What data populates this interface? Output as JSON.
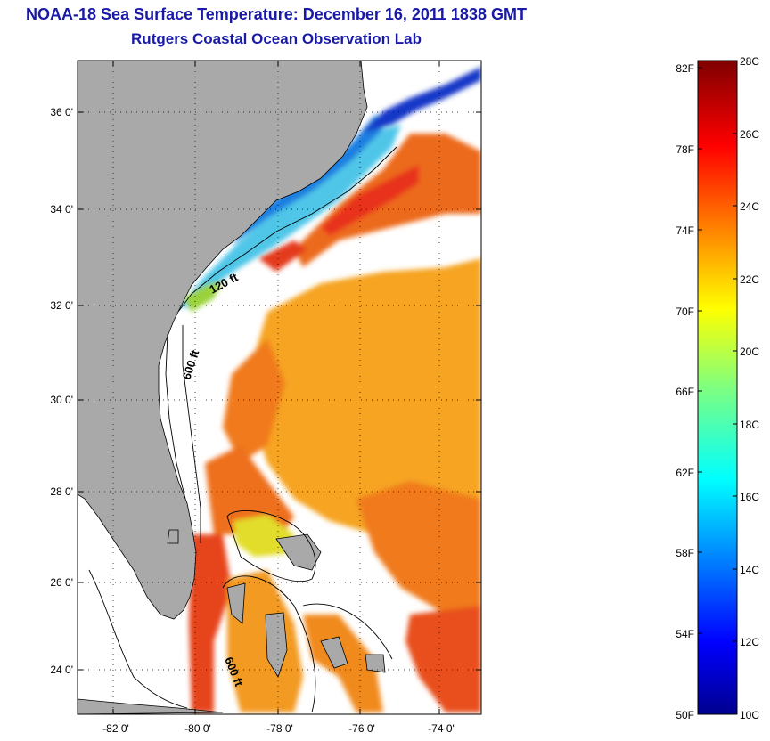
{
  "title": {
    "line1": "NOAA-18 Sea Surface Temperature:  December 16, 2011 1838 GMT",
    "line2": "Rutgers Coastal Ocean Observation Lab"
  },
  "map": {
    "lat_labels": [
      "36 0'",
      "34 0'",
      "32 0'",
      "30 0'",
      "28 0'",
      "26 0'",
      "24 0'"
    ],
    "lon_labels": [
      "-82 0'",
      "-80 0'",
      "-78 0'",
      "-76 0'",
      "-74 0'"
    ],
    "contour_labels": [
      "120 ft",
      "600 ft",
      "600 ft"
    ],
    "colors": {
      "land": "#a9a9a9",
      "cloud_mask": "#ffffff",
      "warm_water": "#f39a1e",
      "gulf_stream": "#e6401b",
      "cold_shelf": "#1a64dc"
    }
  },
  "colorbar": {
    "celsius_labels": [
      "28C",
      "26C",
      "24C",
      "22C",
      "20C",
      "18C",
      "16C",
      "14C",
      "12C",
      "10C"
    ],
    "fahrenheit_labels": [
      "82F",
      "78F",
      "74F",
      "70F",
      "66F",
      "62F",
      "58F",
      "54F",
      "50F"
    ],
    "colormap": "jet"
  }
}
